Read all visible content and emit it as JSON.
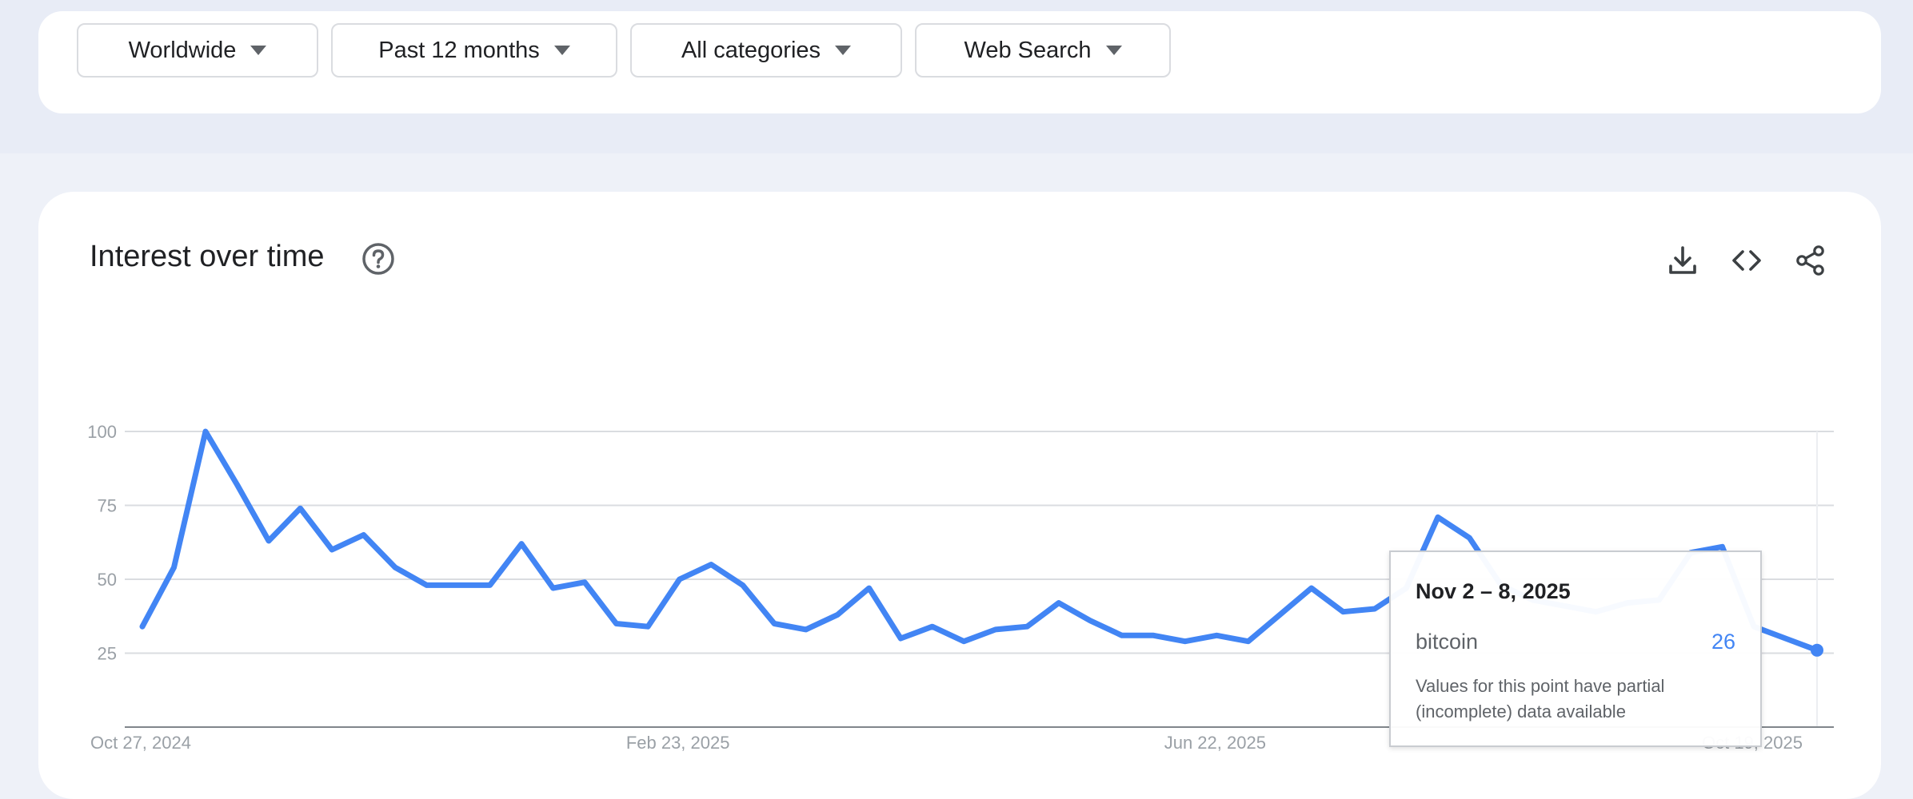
{
  "filters": {
    "region": "Worldwide",
    "time_range": "Past 12 months",
    "category": "All categories",
    "property": "Web Search"
  },
  "card": {
    "title": "Interest over time",
    "help_icon": "help-circle-icon",
    "actions": [
      "download-icon",
      "embed-code-icon",
      "share-icon"
    ]
  },
  "colors": {
    "series": "#4285f4",
    "gridline": "#dadce0",
    "axis_text": "#9aa0a6"
  },
  "tooltip": {
    "date": "Nov 2 – 8, 2025",
    "term": "bitcoin",
    "value": "26",
    "note": "Values for this point have partial (incomplete) data available"
  },
  "chart_data": {
    "type": "line",
    "title": "Interest over time",
    "xlabel": "",
    "ylabel": "",
    "x_start": "2024-10-27",
    "x_end": "2025-11-02",
    "x_ticks": [
      "Oct 27, 2024",
      "Feb 23, 2025",
      "Jun 22, 2025",
      "Oct 19, 2025"
    ],
    "y_ticks": [
      25,
      50,
      75,
      100
    ],
    "ylim": [
      0,
      100
    ],
    "grid": true,
    "series": [
      {
        "name": "bitcoin",
        "values": [
          34,
          54,
          100,
          82,
          63,
          74,
          60,
          65,
          54,
          48,
          48,
          48,
          62,
          47,
          49,
          35,
          34,
          50,
          55,
          48,
          35,
          33,
          38,
          47,
          30,
          34,
          29,
          33,
          34,
          42,
          36,
          31,
          31,
          29,
          31,
          29,
          38,
          47,
          39,
          40,
          47,
          71,
          64,
          48,
          43,
          41,
          39,
          42,
          43,
          59,
          61,
          34,
          30,
          26
        ]
      }
    ],
    "highlighted_point": {
      "x": "Nov 2 – 8, 2025",
      "y": 26
    }
  }
}
